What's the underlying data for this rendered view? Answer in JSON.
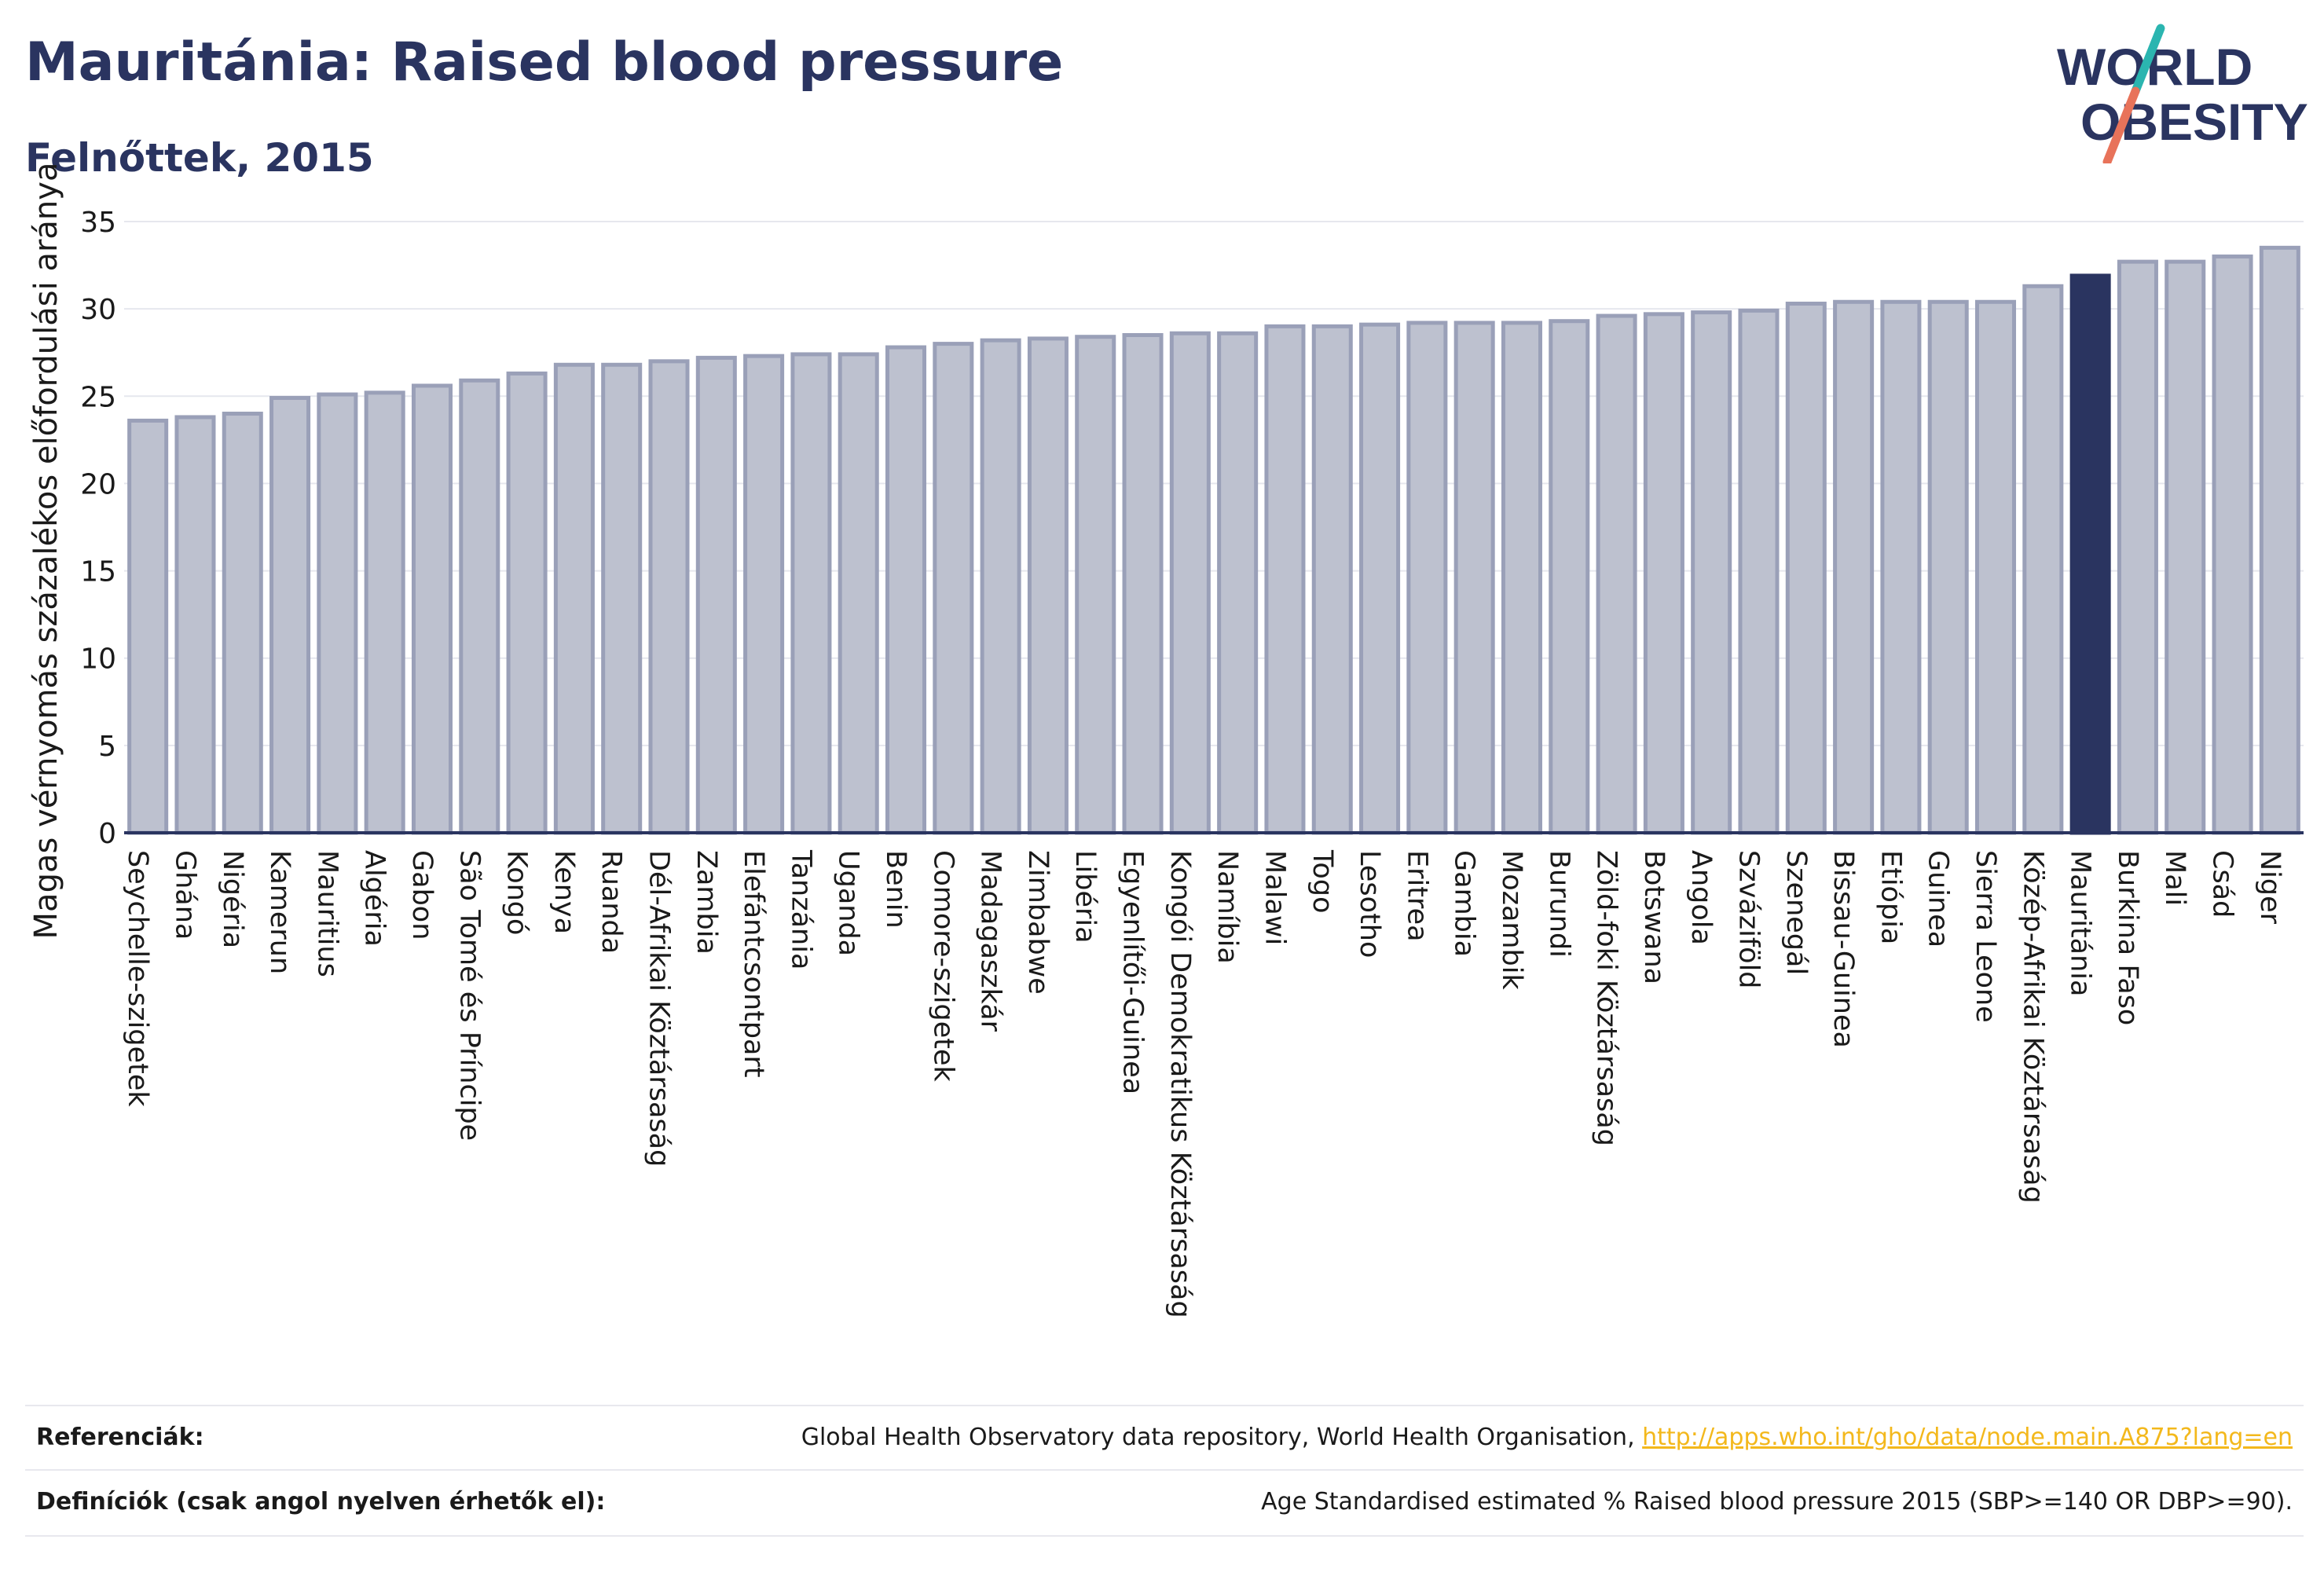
{
  "header": {
    "title": "Mauritánia: Raised blood pressure",
    "subtitle": "Felnőttek, 2015"
  },
  "logo": {
    "line1": "WORLD",
    "line2": "OBESITY",
    "icon": "world-obesity-slash-logo",
    "colors": {
      "text": "#2a3460",
      "slash_top": "#2bb5b0",
      "slash_bottom": "#e8735a"
    }
  },
  "chart_data": {
    "type": "bar",
    "ylabel": "Magas vérnyomás százalékos előfordulási aránya",
    "xlabel": "",
    "ylim": [
      0,
      35
    ],
    "yticks": [
      0,
      5,
      10,
      15,
      20,
      25,
      30,
      35
    ],
    "grid": true,
    "highlight": "Mauritánia",
    "colors": {
      "bar": "#bdc1cf",
      "bar_edge": "#9aa0b8",
      "highlight": "#2a3460",
      "axis": "#2a3460",
      "grid": "#e6e7ee"
    },
    "categories": [
      "Seychelle-szigetek",
      "Ghána",
      "Nigéria",
      "Kamerun",
      "Mauritius",
      "Algéria",
      "Gabon",
      "São Tomé és Príncipe",
      "Kongó",
      "Kenya",
      "Ruanda",
      "Dél-Afrikai Köztársaság",
      "Zambia",
      "Elefántcsontpart",
      "Tanzánia",
      "Uganda",
      "Benin",
      "Comore-szigetek",
      "Madagaszkár",
      "Zimbabwe",
      "Libéria",
      "Egyenlítői-Guinea",
      "Kongói Demokratikus Köztársaság",
      "Namíbia",
      "Malawi",
      "Togo",
      "Lesotho",
      "Eritrea",
      "Gambia",
      "Mozambik",
      "Burundi",
      "Zöld-foki Köztársaság",
      "Botswana",
      "Angola",
      "Szváziföld",
      "Szenegál",
      "Bissau-Guinea",
      "Etiópia",
      "Guinea",
      "Sierra Leone",
      "Közép-Afrikai Köztársaság",
      "Mauritánia",
      "Burkina Faso",
      "Mali",
      "Csád",
      "Niger"
    ],
    "values": [
      23.6,
      23.8,
      24.0,
      24.9,
      25.1,
      25.2,
      25.6,
      25.9,
      26.3,
      26.8,
      26.8,
      27.0,
      27.2,
      27.3,
      27.4,
      27.4,
      27.8,
      28.0,
      28.2,
      28.3,
      28.4,
      28.5,
      28.6,
      28.6,
      29.0,
      29.0,
      29.1,
      29.2,
      29.2,
      29.2,
      29.3,
      29.6,
      29.7,
      29.8,
      29.9,
      30.3,
      30.4,
      30.4,
      30.4,
      30.4,
      31.3,
      31.9,
      32.7,
      32.7,
      33.0,
      33.5
    ]
  },
  "references": {
    "sources_label": "Referenciák:",
    "sources_text": "Global Health Observatory data repository, World Health Organisation, ",
    "sources_link": "http://apps.who.int/gho/data/node.main.A875?lang=en",
    "definitions_label": "Definíciók (csak angol nyelven érhetők el):",
    "definitions_text": "Age Standardised estimated % Raised blood pressure 2015 (SBP>=140 OR DBP>=90)."
  }
}
